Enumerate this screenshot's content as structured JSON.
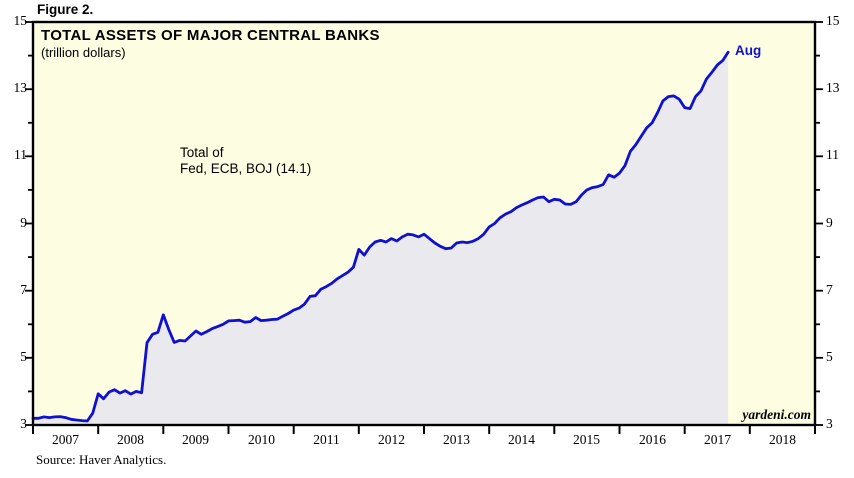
{
  "figure": {
    "label": "Figure 2."
  },
  "header": {
    "title": "TOTAL ASSETS OF MAJOR CENTRAL BANKS",
    "subtitle": "(trillion dollars)"
  },
  "annotation": {
    "line1": "Total of",
    "line2": "Fed, ECB, BOJ (14.1)"
  },
  "end_label": "Aug",
  "watermark": "yardeni.com",
  "source": "Source: Haver Analytics.",
  "colors": {
    "plot_bg": "#FDFDE2",
    "area_fill": "#EAEAEE",
    "line": "#1010D2",
    "axis": "#000000",
    "end_label": "#1010D2"
  },
  "chart_data": {
    "type": "area",
    "title": "TOTAL ASSETS OF MAJOR CENTRAL BANKS",
    "subtitle": "(trillion dollars)",
    "xlabel": "",
    "ylabel": "trillion dollars",
    "grid": false,
    "legend_position": "none",
    "x_tick_labels": [
      "2007",
      "2008",
      "2009",
      "2010",
      "2011",
      "2012",
      "2013",
      "2014",
      "2015",
      "2016",
      "2017",
      "2018"
    ],
    "y_ticks": [
      3,
      5,
      7,
      9,
      11,
      13,
      15
    ],
    "y_minor_ticks": [
      4,
      6,
      8,
      10,
      12,
      14
    ],
    "ylim": [
      3,
      15
    ],
    "x_years_shown": 12,
    "annotation_text": "Total of Fed, ECB, BOJ (14.1)",
    "latest_point": {
      "month": "Aug",
      "year": 2017,
      "value": 14.1
    },
    "series": [
      {
        "name": "Total of Fed, ECB, BOJ",
        "frequency": "monthly",
        "start": "2007-01",
        "end": "2017-08",
        "values": [
          3.2,
          3.24,
          3.22,
          3.24,
          3.25,
          3.22,
          3.17,
          3.15,
          3.13,
          3.12,
          3.35,
          3.93,
          3.78,
          3.98,
          4.05,
          3.95,
          4.02,
          3.92,
          4.0,
          3.96,
          5.45,
          5.7,
          5.76,
          6.28,
          5.84,
          5.46,
          5.52,
          5.5,
          5.65,
          5.8,
          5.7,
          5.78,
          5.87,
          5.93,
          6.0,
          6.1,
          6.11,
          6.12,
          6.06,
          6.08,
          6.2,
          6.11,
          6.12,
          6.14,
          6.15,
          6.24,
          6.32,
          6.42,
          6.48,
          6.6,
          6.83,
          6.85,
          7.04,
          7.12,
          7.22,
          7.35,
          7.45,
          7.55,
          7.7,
          8.23,
          8.06,
          8.3,
          8.45,
          8.5,
          8.45,
          8.55,
          8.48,
          8.6,
          8.68,
          8.66,
          8.6,
          8.68,
          8.55,
          8.42,
          8.32,
          8.25,
          8.27,
          8.42,
          8.45,
          8.43,
          8.47,
          8.55,
          8.68,
          8.9,
          9.0,
          9.17,
          9.28,
          9.35,
          9.47,
          9.55,
          9.62,
          9.7,
          9.77,
          9.79,
          9.65,
          9.72,
          9.7,
          9.58,
          9.57,
          9.65,
          9.85,
          10.0,
          10.07,
          10.1,
          10.16,
          10.45,
          10.38,
          10.5,
          10.72,
          11.15,
          11.35,
          11.6,
          11.85,
          12.0,
          12.3,
          12.65,
          12.78,
          12.8,
          12.7,
          12.45,
          12.42,
          12.78,
          12.95,
          13.3,
          13.5,
          13.72,
          13.85,
          14.1
        ]
      }
    ]
  }
}
